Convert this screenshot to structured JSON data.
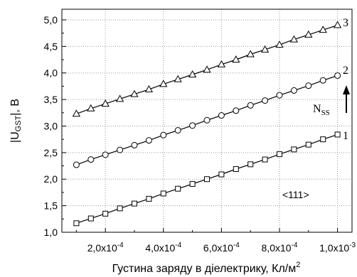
{
  "chart_data": {
    "type": "line",
    "title": "",
    "xlabel": "Густина заряду в діелектрику, Кл/м",
    "xlabel_superscript": "2",
    "ylabel_prefix": "|U",
    "ylabel_sub": "GST",
    "ylabel_suffix": "|, В",
    "xlim": [
      5e-05,
      0.00105
    ],
    "ylim": [
      1.0,
      5.2
    ],
    "grid": true,
    "x_ticks": [
      0.0002,
      0.0004,
      0.0006,
      0.0008,
      0.001
    ],
    "x_tick_labels": [
      {
        "mantissa": "2,0x10",
        "exp": "-4"
      },
      {
        "mantissa": "4,0x10",
        "exp": "-4"
      },
      {
        "mantissa": "6,0x10",
        "exp": "-4"
      },
      {
        "mantissa": "8,0x10",
        "exp": "-4"
      },
      {
        "mantissa": "1,0x10",
        "exp": "-3"
      }
    ],
    "y_ticks": [
      1.0,
      1.5,
      2.0,
      2.5,
      3.0,
      3.5,
      4.0,
      4.5,
      5.0
    ],
    "y_tick_labels": [
      "1,0",
      "1,5",
      "2,0",
      "2,5",
      "3,0",
      "3,5",
      "4,0",
      "4,5",
      "5,0"
    ],
    "x": [
      0.0001,
      0.00015,
      0.0002,
      0.00025,
      0.0003,
      0.00035,
      0.0004,
      0.00045,
      0.0005,
      0.00055,
      0.0006,
      0.00065,
      0.0007,
      0.00075,
      0.0008,
      0.00085,
      0.0009,
      0.00095,
      0.001
    ],
    "series": [
      {
        "name": "1",
        "marker": "square",
        "values": [
          1.17,
          1.26,
          1.35,
          1.45,
          1.54,
          1.63,
          1.73,
          1.82,
          1.91,
          2.0,
          2.09,
          2.19,
          2.28,
          2.37,
          2.47,
          2.56,
          2.65,
          2.75,
          2.84
        ]
      },
      {
        "name": "2",
        "marker": "circle",
        "values": [
          2.27,
          2.37,
          2.46,
          2.55,
          2.64,
          2.73,
          2.83,
          2.92,
          3.01,
          3.11,
          3.2,
          3.29,
          3.39,
          3.48,
          3.58,
          3.67,
          3.76,
          3.86,
          3.95
        ]
      },
      {
        "name": "3",
        "marker": "triangle",
        "values": [
          3.23,
          3.33,
          3.42,
          3.51,
          3.6,
          3.69,
          3.79,
          3.88,
          3.97,
          4.06,
          4.16,
          4.25,
          4.35,
          4.44,
          4.53,
          4.63,
          4.72,
          4.81,
          4.9
        ]
      }
    ],
    "annotations": {
      "direction_label": "N",
      "direction_sub": "SS",
      "orientation": "<111>"
    }
  }
}
